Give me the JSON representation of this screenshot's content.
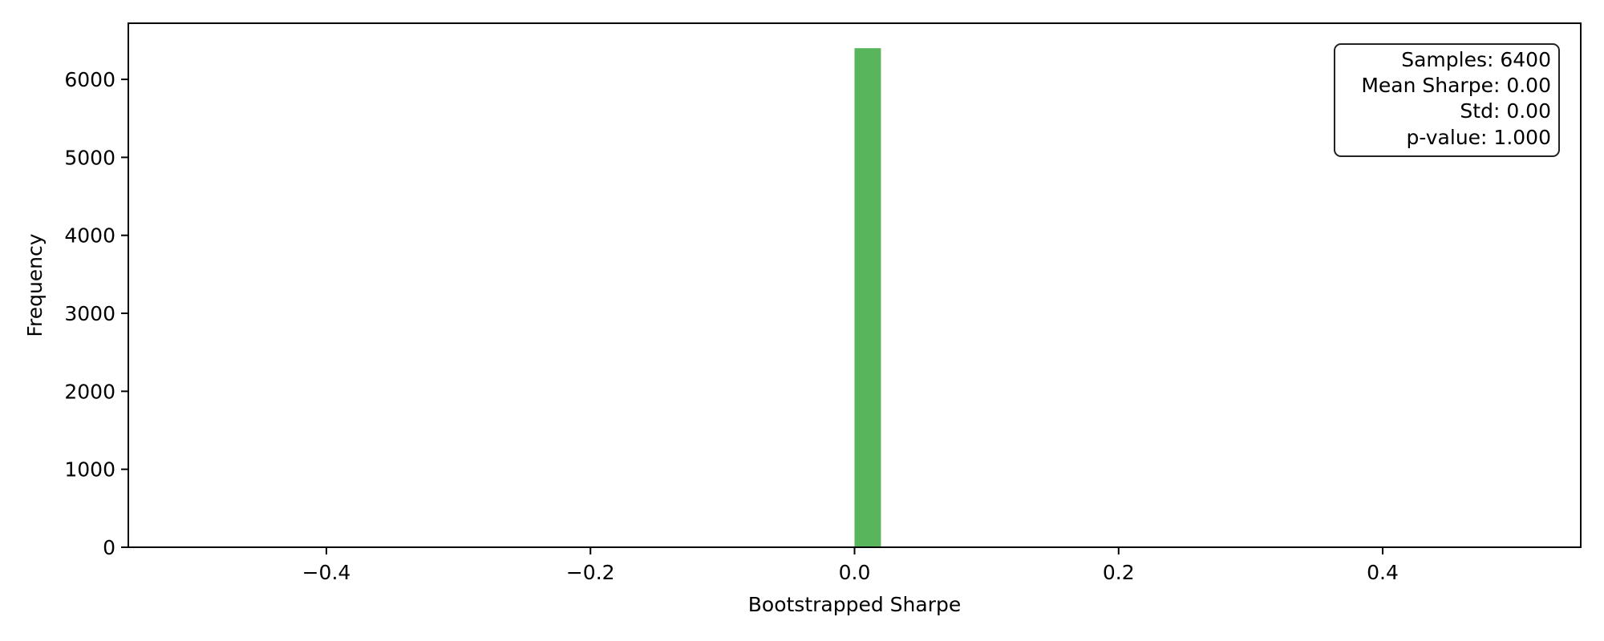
{
  "chart_data": {
    "type": "bar",
    "title": "",
    "xlabel": "Bootstrapped Sharpe",
    "ylabel": "Frequency",
    "xlim": [
      -0.55,
      0.55
    ],
    "ylim": [
      0,
      6720
    ],
    "x_ticks": [
      -0.4,
      -0.2,
      0.0,
      0.2,
      0.4
    ],
    "x_tick_labels": [
      "−0.4",
      "−0.2",
      "0.0",
      "0.2",
      "0.4"
    ],
    "y_ticks": [
      0,
      1000,
      2000,
      3000,
      4000,
      5000,
      6000
    ],
    "y_tick_labels": [
      "0",
      "1000",
      "2000",
      "3000",
      "4000",
      "5000",
      "6000"
    ],
    "bins": [
      {
        "x_start": 0.0,
        "x_end": 0.02,
        "count": 6400
      }
    ],
    "bar_color": "#4caf50",
    "grid": false,
    "stats_box": {
      "position": "top-right",
      "lines": [
        "Samples: 6400",
        "Mean Sharpe: 0.00",
        "Std: 0.00",
        "p-value: 1.000"
      ]
    }
  }
}
